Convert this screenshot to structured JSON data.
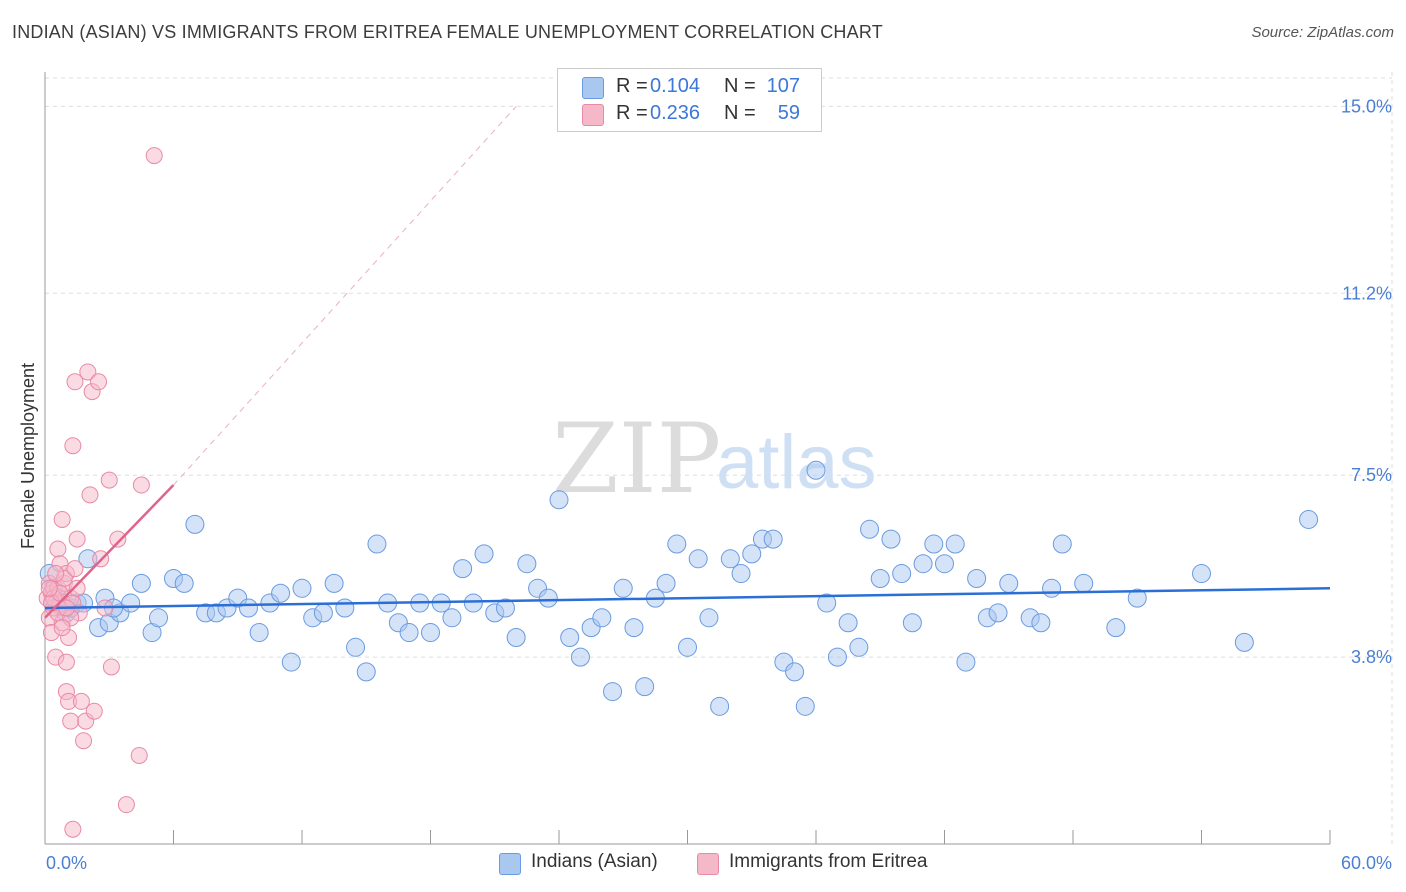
{
  "title": "INDIAN (ASIAN) VS IMMIGRANTS FROM ERITREA FEMALE UNEMPLOYMENT CORRELATION CHART",
  "source": "Source: ZipAtlas.com",
  "watermark": {
    "zip": "ZIP",
    "atlas": "atlas"
  },
  "legend": {
    "rows": [
      {
        "r_label": "R =",
        "r_value": "0.104",
        "n_label": "N =",
        "n_value": "107",
        "color": "#a9c8f0"
      },
      {
        "r_label": "R =",
        "r_value": "0.236",
        "n_label": "N =",
        "n_value": "59",
        "color": "#f5b8c9"
      }
    ]
  },
  "bottom_legend": {
    "series1": "Indians (Asian)",
    "series2": "Immigrants from Eritrea"
  },
  "colors": {
    "series1_fill": "#a9c8f0",
    "series1_stroke": "#6a9be0",
    "series1_line": "#2a6fd6",
    "series2_fill": "#f5b8c9",
    "series2_stroke": "#e88aa6",
    "series2_line": "#e0648a",
    "grid": "#dddddd",
    "axis_text": "#4a7fd4"
  },
  "chart_data": {
    "type": "scatter",
    "title": "INDIAN (ASIAN) VS IMMIGRANTS FROM ERITREA FEMALE UNEMPLOYMENT CORRELATION CHART",
    "xlabel": "",
    "ylabel": "Female Unemployment",
    "xlim": [
      0,
      60
    ],
    "ylim": [
      0,
      15.7
    ],
    "x_tick_labels": [
      "0.0%",
      "60.0%"
    ],
    "y_ticks": [
      3.8,
      7.5,
      11.2,
      15.0
    ],
    "y_tick_labels": [
      "3.8%",
      "7.5%",
      "11.2%",
      "15.0%"
    ],
    "series": [
      {
        "name": "Indians (Asian)",
        "r": 0.104,
        "n": 107,
        "trend": {
          "x": [
            0,
            60
          ],
          "y": [
            4.8,
            5.2
          ]
        },
        "points": [
          [
            0.2,
            5.5
          ],
          [
            0.4,
            5.2
          ],
          [
            0.6,
            5.0
          ],
          [
            0.8,
            4.9
          ],
          [
            1.0,
            4.7
          ],
          [
            1.2,
            4.8
          ],
          [
            1.5,
            4.9
          ],
          [
            2.0,
            5.8
          ],
          [
            2.5,
            4.4
          ],
          [
            2.8,
            5.0
          ],
          [
            3.0,
            4.5
          ],
          [
            3.5,
            4.7
          ],
          [
            4.0,
            4.9
          ],
          [
            4.5,
            5.3
          ],
          [
            5.0,
            4.3
          ],
          [
            5.3,
            4.6
          ],
          [
            6.0,
            5.4
          ],
          [
            6.5,
            5.3
          ],
          [
            7.0,
            6.5
          ],
          [
            7.5,
            4.7
          ],
          [
            8.0,
            4.7
          ],
          [
            8.5,
            4.8
          ],
          [
            9.0,
            5.0
          ],
          [
            9.5,
            4.8
          ],
          [
            10.0,
            4.3
          ],
          [
            10.5,
            4.9
          ],
          [
            11.0,
            5.1
          ],
          [
            11.5,
            3.7
          ],
          [
            12.0,
            5.2
          ],
          [
            12.5,
            4.6
          ],
          [
            13.0,
            4.7
          ],
          [
            13.5,
            5.3
          ],
          [
            14.0,
            4.8
          ],
          [
            14.5,
            4.0
          ],
          [
            15.0,
            3.5
          ],
          [
            15.5,
            6.1
          ],
          [
            16.0,
            4.9
          ],
          [
            16.5,
            4.5
          ],
          [
            17.0,
            4.3
          ],
          [
            17.5,
            4.9
          ],
          [
            18.0,
            4.3
          ],
          [
            18.5,
            4.9
          ],
          [
            19.0,
            4.6
          ],
          [
            19.5,
            5.6
          ],
          [
            20.0,
            4.9
          ],
          [
            20.5,
            5.9
          ],
          [
            21.0,
            4.7
          ],
          [
            21.5,
            4.8
          ],
          [
            22.0,
            4.2
          ],
          [
            22.5,
            5.7
          ],
          [
            23.0,
            5.2
          ],
          [
            23.5,
            5.0
          ],
          [
            24.0,
            7.0
          ],
          [
            24.5,
            4.2
          ],
          [
            25.0,
            3.8
          ],
          [
            25.5,
            4.4
          ],
          [
            26.0,
            4.6
          ],
          [
            26.5,
            3.1
          ],
          [
            27.0,
            5.2
          ],
          [
            27.5,
            4.4
          ],
          [
            28.0,
            3.2
          ],
          [
            28.5,
            5.0
          ],
          [
            29.0,
            5.3
          ],
          [
            29.5,
            6.1
          ],
          [
            30.0,
            4.0
          ],
          [
            30.5,
            5.8
          ],
          [
            31.0,
            4.6
          ],
          [
            31.5,
            2.8
          ],
          [
            32.0,
            5.8
          ],
          [
            32.5,
            5.5
          ],
          [
            33.0,
            5.9
          ],
          [
            33.5,
            6.2
          ],
          [
            34.0,
            6.2
          ],
          [
            34.5,
            3.7
          ],
          [
            35.0,
            3.5
          ],
          [
            35.5,
            2.8
          ],
          [
            36.0,
            7.6
          ],
          [
            36.5,
            4.9
          ],
          [
            37.0,
            3.8
          ],
          [
            37.5,
            4.5
          ],
          [
            38.0,
            4.0
          ],
          [
            38.5,
            6.4
          ],
          [
            39.0,
            5.4
          ],
          [
            39.5,
            6.2
          ],
          [
            40.0,
            5.5
          ],
          [
            40.5,
            4.5
          ],
          [
            41.0,
            5.7
          ],
          [
            41.5,
            6.1
          ],
          [
            42.0,
            5.7
          ],
          [
            42.5,
            6.1
          ],
          [
            43.0,
            3.7
          ],
          [
            43.5,
            5.4
          ],
          [
            44.0,
            4.6
          ],
          [
            44.5,
            4.7
          ],
          [
            45.0,
            5.3
          ],
          [
            46.0,
            4.6
          ],
          [
            46.5,
            4.5
          ],
          [
            47.0,
            5.2
          ],
          [
            47.5,
            6.1
          ],
          [
            48.5,
            5.3
          ],
          [
            50.0,
            4.4
          ],
          [
            51.0,
            5.0
          ],
          [
            54.0,
            5.5
          ],
          [
            56.0,
            4.1
          ],
          [
            59.0,
            6.6
          ],
          [
            1.8,
            4.9
          ],
          [
            3.2,
            4.8
          ]
        ]
      },
      {
        "name": "Immigrants from Eritrea",
        "r": 0.236,
        "n": 59,
        "trend": {
          "x": [
            0,
            6.0
          ],
          "y": [
            4.6,
            7.3
          ]
        },
        "trend_extension": {
          "x": [
            6.0,
            22.0
          ],
          "y": [
            7.3,
            15.0
          ]
        },
        "points": [
          [
            0.1,
            5.0
          ],
          [
            0.2,
            5.3
          ],
          [
            0.2,
            4.6
          ],
          [
            0.3,
            4.3
          ],
          [
            0.3,
            5.1
          ],
          [
            0.4,
            4.8
          ],
          [
            0.4,
            5.2
          ],
          [
            0.5,
            3.8
          ],
          [
            0.5,
            4.9
          ],
          [
            0.6,
            6.0
          ],
          [
            0.6,
            5.2
          ],
          [
            0.7,
            5.7
          ],
          [
            0.7,
            4.9
          ],
          [
            0.8,
            6.6
          ],
          [
            0.8,
            4.5
          ],
          [
            0.9,
            5.3
          ],
          [
            0.9,
            4.8
          ],
          [
            1.0,
            5.5
          ],
          [
            1.0,
            3.1
          ],
          [
            1.0,
            3.7
          ],
          [
            1.1,
            2.9
          ],
          [
            1.1,
            4.2
          ],
          [
            1.2,
            2.5
          ],
          [
            1.2,
            5.0
          ],
          [
            1.3,
            8.1
          ],
          [
            1.3,
            4.9
          ],
          [
            1.4,
            9.4
          ],
          [
            1.5,
            5.2
          ],
          [
            1.5,
            6.2
          ],
          [
            1.6,
            4.7
          ],
          [
            1.7,
            2.9
          ],
          [
            1.8,
            2.1
          ],
          [
            1.9,
            2.5
          ],
          [
            2.0,
            9.6
          ],
          [
            2.1,
            7.1
          ],
          [
            2.2,
            9.2
          ],
          [
            2.3,
            2.7
          ],
          [
            2.5,
            9.4
          ],
          [
            2.6,
            5.8
          ],
          [
            2.8,
            4.8
          ],
          [
            3.0,
            7.4
          ],
          [
            3.1,
            3.6
          ],
          [
            3.4,
            6.2
          ],
          [
            3.8,
            0.8
          ],
          [
            4.4,
            1.8
          ],
          [
            4.5,
            7.3
          ],
          [
            5.1,
            14.0
          ],
          [
            1.3,
            0.3
          ],
          [
            0.4,
            5.0
          ],
          [
            0.6,
            4.7
          ],
          [
            0.9,
            5.4
          ],
          [
            1.2,
            4.6
          ],
          [
            0.3,
            4.9
          ],
          [
            0.7,
            5.1
          ],
          [
            0.5,
            5.5
          ],
          [
            1.4,
            5.6
          ],
          [
            0.2,
            5.2
          ],
          [
            0.8,
            4.4
          ],
          [
            1.0,
            4.8
          ]
        ]
      }
    ]
  }
}
